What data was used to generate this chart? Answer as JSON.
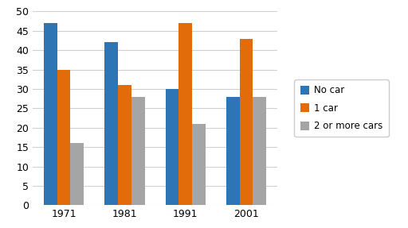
{
  "years": [
    "1971",
    "1981",
    "1991",
    "2001"
  ],
  "series": {
    "No car": [
      47,
      42,
      30,
      28
    ],
    "1 car": [
      35,
      31,
      47,
      43
    ],
    "2 or more cars": [
      16,
      28,
      21,
      28
    ]
  },
  "colors": {
    "No car": "#2E75B6",
    "1 car": "#E36C0A",
    "2 or more cars": "#A5A5A5"
  },
  "ylim": [
    0,
    50
  ],
  "yticks": [
    0,
    5,
    10,
    15,
    20,
    25,
    30,
    35,
    40,
    45,
    50
  ],
  "legend_labels": [
    "No car",
    "1 car",
    "2 or more cars"
  ],
  "bar_width": 0.22,
  "background_color": "#ffffff",
  "grid_color": "#d0d0d0"
}
